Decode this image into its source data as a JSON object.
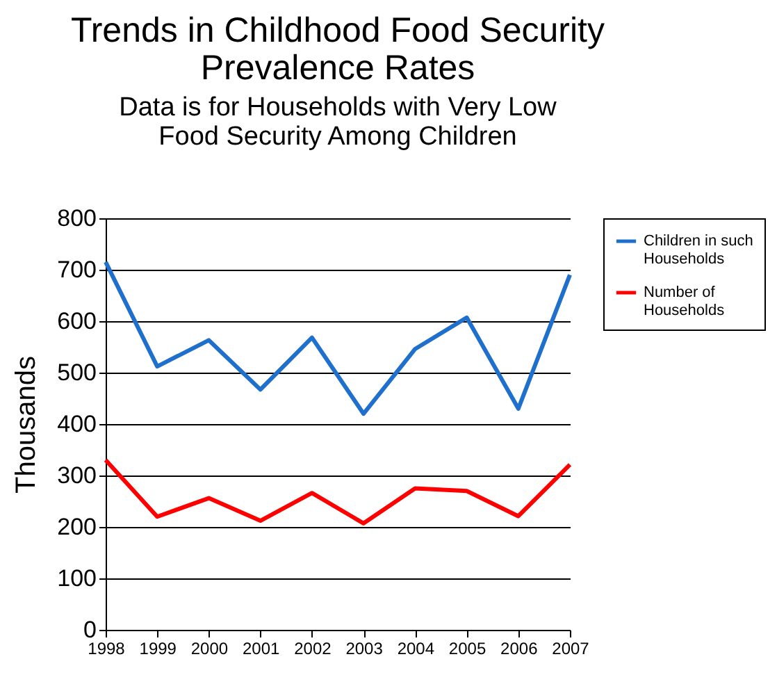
{
  "chart_data": {
    "type": "line",
    "title": "Trends in Childhood Food Security Prevalence Rates",
    "subtitle": "Data is for Households with Very Low Food Security Among Children",
    "ylabel": "Thousands",
    "x": [
      1998,
      1999,
      2000,
      2001,
      2002,
      2003,
      2004,
      2005,
      2006,
      2007
    ],
    "series": [
      {
        "name": "Children in such Households",
        "color": "#1f6fcc",
        "values": [
          715,
          512,
          563,
          467,
          568,
          420,
          546,
          607,
          430,
          690
        ]
      },
      {
        "name": "Number of Households",
        "color": "#ff0000",
        "values": [
          330,
          220,
          256,
          212,
          266,
          207,
          275,
          270,
          221,
          321
        ]
      }
    ],
    "xlim": [
      1998,
      2007
    ],
    "xticks": [
      1998,
      1999,
      2000,
      2001,
      2002,
      2003,
      2004,
      2005,
      2006,
      2007
    ],
    "ylim": [
      0,
      800
    ],
    "yticks": [
      0,
      100,
      200,
      300,
      400,
      500,
      600,
      700,
      800
    ],
    "grid": "y",
    "legend": "right",
    "marker": "none",
    "line_style": "solid"
  }
}
